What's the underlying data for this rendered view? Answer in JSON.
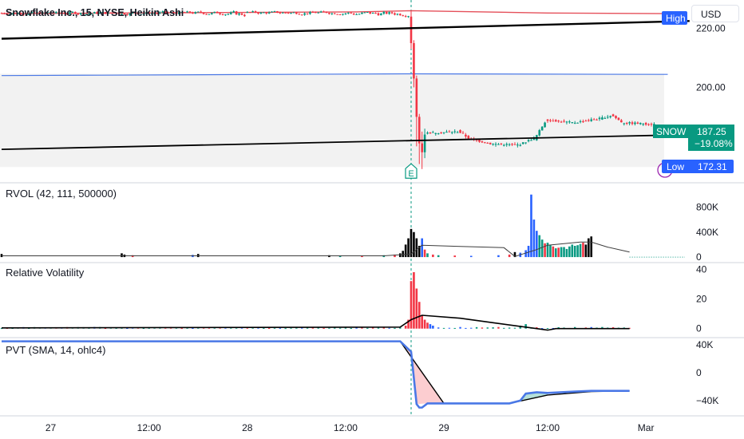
{
  "header": {
    "title": "Snowflake Inc., 15, NYSE, Heikin Ashi",
    "currency": "USD"
  },
  "colors": {
    "up": "#089981",
    "down": "#f23645",
    "blue": "#2962ff",
    "black": "#000000",
    "band": "#f2f2f2",
    "grid": "#e8e9ed",
    "red_line": "#e5505a",
    "blue_line": "#4a78e6"
  },
  "tags": {
    "high_label": "High",
    "low_label": "Low",
    "low_value": "172.31",
    "symbol": "SNOW",
    "price": "187.25",
    "change": "−19.08%",
    "earnings": "E"
  },
  "chart_data": [
    {
      "type": "candlestick",
      "title": "Snowflake Inc., 15, NYSE, Heikin Ashi",
      "ylim": [
        169,
        228
      ],
      "yticks": [
        "220.00",
        "200.00",
        "180.00"
      ],
      "ytick_values": [
        220,
        200,
        180
      ],
      "segments": [
        {
          "start": 0,
          "end": 84,
          "base": 225.2,
          "swing": 1.0,
          "drop": 0
        },
        {
          "start": 84,
          "end": 90,
          "base": 224.8,
          "swing": 1.6,
          "drop": 0
        },
        {
          "start": 90,
          "end": 129,
          "base": 225.3,
          "swing": 0.9,
          "drop": 0
        },
        {
          "start": 129,
          "end": 150,
          "base": 225.0,
          "swing": 1.3,
          "drop": 0
        }
      ],
      "crash": {
        "index": 150,
        "candles": [
          {
            "o": 224,
            "c": 215,
            "h": 226,
            "l": 213,
            "dir": "down"
          },
          {
            "o": 215,
            "c": 203,
            "h": 216,
            "l": 200,
            "dir": "down"
          },
          {
            "o": 203,
            "c": 190,
            "h": 204,
            "l": 180,
            "dir": "down"
          },
          {
            "o": 190,
            "c": 181,
            "h": 191,
            "l": 174,
            "dir": "down"
          },
          {
            "o": 181,
            "c": 178,
            "h": 185,
            "l": 172.3,
            "dir": "down"
          },
          {
            "o": 178,
            "c": 184,
            "h": 186,
            "l": 176,
            "dir": "up"
          }
        ]
      },
      "recovery": [
        {
          "x": 156,
          "y": 184.5
        },
        {
          "x": 168,
          "y": 185.0
        },
        {
          "x": 172,
          "y": 182.5
        },
        {
          "x": 180,
          "y": 180.8
        },
        {
          "x": 190,
          "y": 180.5
        },
        {
          "x": 196,
          "y": 183.0
        },
        {
          "x": 200,
          "y": 189.0
        },
        {
          "x": 210,
          "y": 188.0
        },
        {
          "x": 220,
          "y": 189.5
        },
        {
          "x": 224,
          "y": 190.5
        },
        {
          "x": 228,
          "y": 188.0
        },
        {
          "x": 240,
          "y": 187.5
        }
      ],
      "red_line": [
        {
          "x": 0,
          "y": 225.0
        },
        {
          "x": 130,
          "y": 225.6
        },
        {
          "x": 150,
          "y": 226.0
        },
        {
          "x": 200,
          "y": 225.2
        },
        {
          "x": 244,
          "y": 225.0
        }
      ],
      "blue_line": [
        {
          "x": 0,
          "y": 204.0
        },
        {
          "x": 150,
          "y": 204.6
        },
        {
          "x": 244,
          "y": 204.4
        }
      ],
      "black_top": [
        {
          "x": 0,
          "y": 216.5
        },
        {
          "x": 252,
          "y": 222.5
        }
      ],
      "black_bottom": [
        {
          "x": 0,
          "y": 179.0
        },
        {
          "x": 244,
          "y": 183.8
        }
      ],
      "band": [
        204.6,
        173
      ]
    },
    {
      "type": "bar",
      "title": "RVOL (42, 111, 500000)",
      "ylim": [
        -50000,
        1150000
      ],
      "yticks": [
        "800K",
        "400K",
        "0"
      ],
      "ytick_values": [
        800000,
        400000,
        0
      ],
      "bars": [
        {
          "x": 0,
          "v": 50000,
          "c": "black"
        },
        {
          "x": 44,
          "v": 60000,
          "c": "black"
        },
        {
          "x": 45,
          "v": 40000,
          "c": "black"
        },
        {
          "x": 48,
          "v": 30000,
          "c": "down"
        },
        {
          "x": 70,
          "v": 35000,
          "c": "blue"
        },
        {
          "x": 72,
          "v": 50000,
          "c": "black"
        },
        {
          "x": 120,
          "v": 30000,
          "c": "black"
        },
        {
          "x": 124,
          "v": 20000,
          "c": "up"
        },
        {
          "x": 132,
          "v": 25000,
          "c": "down"
        },
        {
          "x": 140,
          "v": 30000,
          "c": "up"
        },
        {
          "x": 144,
          "v": 40000,
          "c": "down"
        },
        {
          "x": 146,
          "v": 60000,
          "c": "black"
        },
        {
          "x": 147,
          "v": 100000,
          "c": "black"
        },
        {
          "x": 148,
          "v": 200000,
          "c": "black"
        },
        {
          "x": 149,
          "v": 300000,
          "c": "black"
        },
        {
          "x": 150,
          "v": 450000,
          "c": "black"
        },
        {
          "x": 151,
          "v": 400000,
          "c": "black"
        },
        {
          "x": 152,
          "v": 300000,
          "c": "black"
        },
        {
          "x": 153,
          "v": 180000,
          "c": "black"
        },
        {
          "x": 154,
          "v": 300000,
          "c": "blue"
        },
        {
          "x": 155,
          "v": 120000,
          "c": "down"
        },
        {
          "x": 156,
          "v": 60000,
          "c": "up"
        },
        {
          "x": 158,
          "v": 40000,
          "c": "down"
        },
        {
          "x": 160,
          "v": 30000,
          "c": "up"
        },
        {
          "x": 166,
          "v": 25000,
          "c": "down"
        },
        {
          "x": 172,
          "v": 20000,
          "c": "blue"
        },
        {
          "x": 182,
          "v": 30000,
          "c": "blue"
        },
        {
          "x": 186,
          "v": 40000,
          "c": "down"
        },
        {
          "x": 188,
          "v": 80000,
          "c": "black"
        },
        {
          "x": 190,
          "v": 70000,
          "c": "blue"
        },
        {
          "x": 192,
          "v": 110000,
          "c": "blue"
        },
        {
          "x": 193,
          "v": 180000,
          "c": "blue"
        },
        {
          "x": 194,
          "v": 1000000,
          "c": "blue"
        },
        {
          "x": 195,
          "v": 600000,
          "c": "blue"
        },
        {
          "x": 196,
          "v": 420000,
          "c": "blue"
        },
        {
          "x": 197,
          "v": 350000,
          "c": "up"
        },
        {
          "x": 198,
          "v": 280000,
          "c": "up"
        },
        {
          "x": 199,
          "v": 220000,
          "c": "down"
        },
        {
          "x": 200,
          "v": 230000,
          "c": "up"
        },
        {
          "x": 201,
          "v": 190000,
          "c": "up"
        },
        {
          "x": 202,
          "v": 170000,
          "c": "down"
        },
        {
          "x": 203,
          "v": 140000,
          "c": "up"
        },
        {
          "x": 204,
          "v": 150000,
          "c": "down"
        },
        {
          "x": 205,
          "v": 160000,
          "c": "up"
        },
        {
          "x": 206,
          "v": 160000,
          "c": "up"
        },
        {
          "x": 207,
          "v": 130000,
          "c": "up"
        },
        {
          "x": 208,
          "v": 170000,
          "c": "up"
        },
        {
          "x": 209,
          "v": 200000,
          "c": "up"
        },
        {
          "x": 210,
          "v": 180000,
          "c": "up"
        },
        {
          "x": 211,
          "v": 190000,
          "c": "up"
        },
        {
          "x": 212,
          "v": 210000,
          "c": "up"
        },
        {
          "x": 213,
          "v": 230000,
          "c": "down"
        },
        {
          "x": 214,
          "v": 200000,
          "c": "black"
        },
        {
          "x": 215,
          "v": 300000,
          "c": "black"
        },
        {
          "x": 216,
          "v": 330000,
          "c": "black"
        }
      ],
      "line": [
        {
          "x": 0,
          "v": 20000
        },
        {
          "x": 140,
          "v": 20000
        },
        {
          "x": 150,
          "v": 50000
        },
        {
          "x": 154,
          "v": 190000
        },
        {
          "x": 168,
          "v": 170000
        },
        {
          "x": 184,
          "v": 150000
        },
        {
          "x": 188,
          "v": 10000
        },
        {
          "x": 196,
          "v": 120000
        },
        {
          "x": 200,
          "v": 190000
        },
        {
          "x": 212,
          "v": 240000
        },
        {
          "x": 216,
          "v": 240000
        },
        {
          "x": 222,
          "v": 160000
        },
        {
          "x": 230,
          "v": 80000
        }
      ]
    },
    {
      "type": "bar",
      "title": "Relative Volatility",
      "ylim": [
        -5,
        45
      ],
      "yticks": [
        "40",
        "20",
        "0"
      ],
      "ytick_values": [
        40,
        20,
        0
      ],
      "bars": [
        {
          "x": 148,
          "v": 2,
          "c": "down"
        },
        {
          "x": 149,
          "v": 6,
          "c": "down"
        },
        {
          "x": 150,
          "v": 32,
          "c": "down"
        },
        {
          "x": 151,
          "v": 38,
          "c": "down"
        },
        {
          "x": 152,
          "v": 27,
          "c": "down"
        },
        {
          "x": 153,
          "v": 18,
          "c": "down"
        },
        {
          "x": 154,
          "v": 9,
          "c": "down"
        },
        {
          "x": 155,
          "v": 6,
          "c": "down"
        },
        {
          "x": 156,
          "v": 4,
          "c": "down"
        },
        {
          "x": 157,
          "v": 3,
          "c": "blue"
        },
        {
          "x": 158,
          "v": 2,
          "c": "blue"
        },
        {
          "x": 190,
          "v": 2,
          "c": "up"
        },
        {
          "x": 192,
          "v": 3,
          "c": "up"
        }
      ],
      "line": [
        {
          "x": 0,
          "v": 0.5
        },
        {
          "x": 146,
          "v": 1.0
        },
        {
          "x": 150,
          "v": 6
        },
        {
          "x": 154,
          "v": 9
        },
        {
          "x": 168,
          "v": 7
        },
        {
          "x": 180,
          "v": 4
        },
        {
          "x": 196,
          "v": 0
        },
        {
          "x": 200,
          "v": -1
        },
        {
          "x": 203,
          "v": 0
        },
        {
          "x": 230,
          "v": 0
        }
      ]
    },
    {
      "type": "line",
      "title": "PVT (SMA, 14, ohlc4)",
      "ylim": [
        -55000,
        48000
      ],
      "yticks": [
        "40K",
        "0",
        "−40K"
      ],
      "ytick_values": [
        40000,
        0,
        -40000
      ],
      "pvt": [
        {
          "x": 0,
          "v": 45000
        },
        {
          "x": 146,
          "v": 45000
        },
        {
          "x": 150,
          "v": 30000
        },
        {
          "x": 152,
          "v": -45000
        },
        {
          "x": 153,
          "v": -50000
        },
        {
          "x": 154,
          "v": -50000
        },
        {
          "x": 156,
          "v": -44000
        },
        {
          "x": 162,
          "v": -44000
        },
        {
          "x": 168,
          "v": -44000
        },
        {
          "x": 186,
          "v": -44000
        },
        {
          "x": 190,
          "v": -40000
        },
        {
          "x": 192,
          "v": -30000
        },
        {
          "x": 196,
          "v": -28000
        },
        {
          "x": 200,
          "v": -29000
        },
        {
          "x": 210,
          "v": -27000
        },
        {
          "x": 216,
          "v": -26000
        },
        {
          "x": 222,
          "v": -26000
        },
        {
          "x": 230,
          "v": -26000
        }
      ],
      "sma": [
        {
          "x": 0,
          "v": 45000
        },
        {
          "x": 146,
          "v": 45000
        },
        {
          "x": 162,
          "v": -44000
        },
        {
          "x": 186,
          "v": -44000
        },
        {
          "x": 200,
          "v": -32000
        },
        {
          "x": 216,
          "v": -27000
        },
        {
          "x": 230,
          "v": -26000
        }
      ]
    }
  ],
  "x_axis": {
    "ticks": [
      {
        "label": "27",
        "x": 18
      },
      {
        "label": "12:00",
        "x": 54
      },
      {
        "label": "28",
        "x": 90
      },
      {
        "label": "12:00",
        "x": 126
      },
      {
        "label": "29",
        "x": 162
      },
      {
        "label": "12:00",
        "x": 200
      },
      {
        "label": "Mar",
        "x": 236
      }
    ]
  }
}
